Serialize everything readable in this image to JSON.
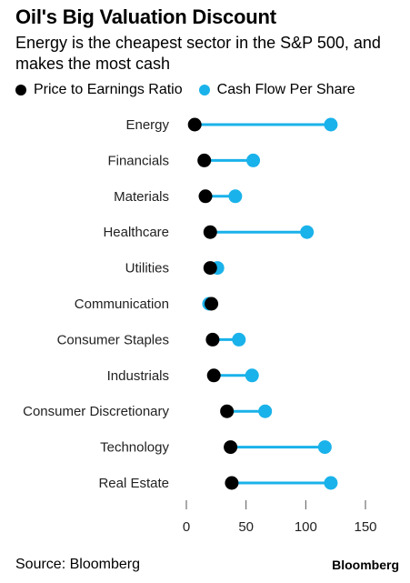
{
  "header": {
    "title": "Oil's Big Valuation Discount",
    "subtitle": "Energy is the cheapest sector in the S&P 500, and makes the most cash"
  },
  "legend": [
    {
      "label": "Price to Earnings Ratio",
      "color": "#000000"
    },
    {
      "label": "Cash Flow Per Share",
      "color": "#1ab2ea"
    }
  ],
  "footer": {
    "source": "Source: Bloomberg",
    "brand": "Bloomberg"
  },
  "chart_data": {
    "type": "dumbbell",
    "categories": [
      "Energy",
      "Financials",
      "Materials",
      "Healthcare",
      "Utilities",
      "Communication",
      "Consumer Staples",
      "Industrials",
      "Consumer Discretionary",
      "Technology",
      "Real Estate"
    ],
    "series": [
      {
        "name": "Price to Earnings Ratio",
        "color": "#000000",
        "values": [
          7,
          15,
          16,
          20,
          20,
          21,
          22,
          23,
          34,
          37,
          38
        ]
      },
      {
        "name": "Cash Flow Per Share",
        "color": "#1ab2ea",
        "values": [
          121,
          56,
          41,
          101,
          26,
          19,
          44,
          55,
          66,
          116,
          121
        ]
      }
    ],
    "xlim": [
      0,
      150
    ],
    "xticks": [
      0,
      50,
      100,
      150
    ],
    "xlabel": "",
    "ylabel": "",
    "grid": false,
    "legend_position": "top-left"
  }
}
